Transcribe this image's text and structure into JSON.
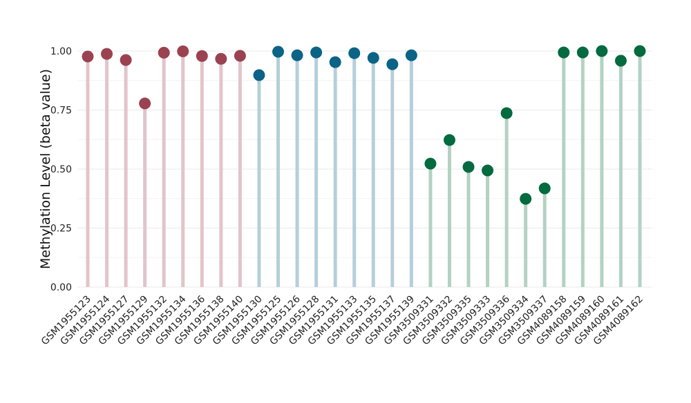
{
  "chart_data": {
    "type": "lollipop",
    "title": "",
    "xlabel": "",
    "ylabel": "Methylation Level (beta value)",
    "ylim": [
      0,
      1
    ],
    "yticks": [
      0,
      0.25,
      0.5,
      0.75,
      1
    ],
    "ytick_labels": [
      "0.00",
      "0.25",
      "0.50",
      "0.75",
      "1.00"
    ],
    "grid": true,
    "groups": [
      {
        "color": "#9b4251",
        "stem_color": "#e2c4ca"
      },
      {
        "color": "#0b6386",
        "stem_color": "#b5cfda"
      },
      {
        "color": "#046a3f",
        "stem_color": "#b3d2c4"
      }
    ],
    "points": [
      {
        "label": "GSM1955123",
        "value": 0.977,
        "group": 0
      },
      {
        "label": "GSM1955124",
        "value": 0.988,
        "group": 0
      },
      {
        "label": "GSM1955127",
        "value": 0.962,
        "group": 0
      },
      {
        "label": "GSM1955129",
        "value": 0.778,
        "group": 0
      },
      {
        "label": "GSM1955132",
        "value": 0.993,
        "group": 0
      },
      {
        "label": "GSM1955134",
        "value": 0.999,
        "group": 0
      },
      {
        "label": "GSM1955136",
        "value": 0.979,
        "group": 0
      },
      {
        "label": "GSM1955138",
        "value": 0.967,
        "group": 0
      },
      {
        "label": "GSM1955140",
        "value": 0.98,
        "group": 0
      },
      {
        "label": "GSM1955130",
        "value": 0.898,
        "group": 1
      },
      {
        "label": "GSM1955125",
        "value": 0.997,
        "group": 1
      },
      {
        "label": "GSM1955126",
        "value": 0.982,
        "group": 1
      },
      {
        "label": "GSM1955128",
        "value": 0.994,
        "group": 1
      },
      {
        "label": "GSM1955131",
        "value": 0.953,
        "group": 1
      },
      {
        "label": "GSM1955133",
        "value": 0.991,
        "group": 1
      },
      {
        "label": "GSM1955135",
        "value": 0.971,
        "group": 1
      },
      {
        "label": "GSM1955137",
        "value": 0.944,
        "group": 1
      },
      {
        "label": "GSM1955139",
        "value": 0.982,
        "group": 1
      },
      {
        "label": "GSM3509331",
        "value": 0.523,
        "group": 2
      },
      {
        "label": "GSM3509332",
        "value": 0.623,
        "group": 2
      },
      {
        "label": "GSM3509335",
        "value": 0.509,
        "group": 2
      },
      {
        "label": "GSM3509333",
        "value": 0.494,
        "group": 2
      },
      {
        "label": "GSM3509336",
        "value": 0.737,
        "group": 2
      },
      {
        "label": "GSM3509334",
        "value": 0.374,
        "group": 2
      },
      {
        "label": "GSM3509337",
        "value": 0.418,
        "group": 2
      },
      {
        "label": "GSM4089158",
        "value": 0.994,
        "group": 2
      },
      {
        "label": "GSM4089159",
        "value": 0.994,
        "group": 2
      },
      {
        "label": "GSM4089160",
        "value": 1.0,
        "group": 2
      },
      {
        "label": "GSM4089161",
        "value": 0.959,
        "group": 2
      },
      {
        "label": "GSM4089162",
        "value": 1.0,
        "group": 2
      }
    ]
  }
}
